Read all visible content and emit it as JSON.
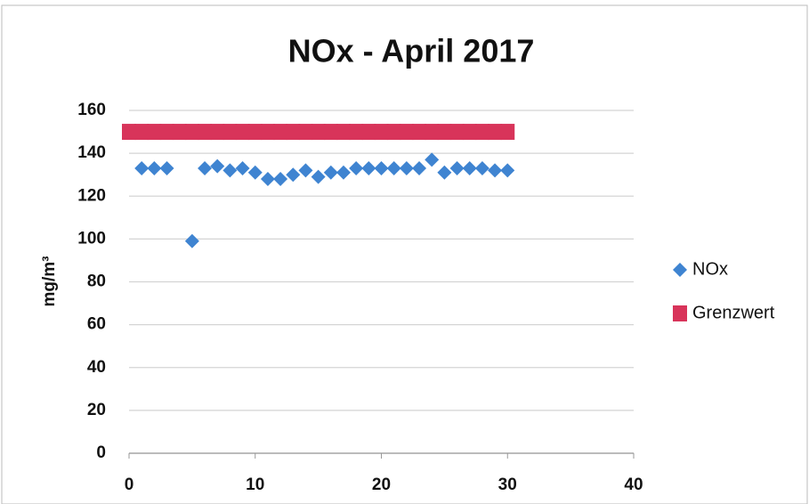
{
  "chart_data": {
    "type": "scatter",
    "title": "NOx -  April 2017",
    "y_label": "mg/m³",
    "xlim": [
      0,
      40
    ],
    "xticks": [
      0,
      10,
      20,
      30,
      40
    ],
    "ylim": [
      0,
      160
    ],
    "yticks": [
      0,
      20,
      40,
      60,
      80,
      100,
      120,
      140,
      160
    ],
    "grid": true,
    "legend": "right",
    "series": [
      {
        "name": "NOx",
        "color": "#3f84d1",
        "marker": "diamond",
        "x": [
          1,
          2,
          3,
          5,
          6,
          7,
          8,
          9,
          10,
          11,
          12,
          13,
          14,
          15,
          16,
          17,
          18,
          19,
          20,
          21,
          22,
          23,
          24,
          25,
          26,
          27,
          28,
          29,
          30
        ],
        "values": [
          133,
          133,
          133,
          99,
          133,
          134,
          132,
          133,
          131,
          128,
          128,
          130,
          132,
          129,
          131,
          131,
          133,
          133,
          133,
          133,
          133,
          133,
          137,
          131,
          133,
          133,
          133,
          132,
          132
        ]
      },
      {
        "name": "Grenzwert",
        "color": "#d8345a",
        "marker": "square",
        "x": [
          0,
          1,
          2,
          3,
          4,
          5,
          6,
          7,
          8,
          9,
          10,
          11,
          12,
          13,
          14,
          15,
          16,
          17,
          18,
          19,
          20,
          21,
          22,
          23,
          24,
          25,
          26,
          27,
          28,
          29,
          30
        ],
        "values": [
          150,
          150,
          150,
          150,
          150,
          150,
          150,
          150,
          150,
          150,
          150,
          150,
          150,
          150,
          150,
          150,
          150,
          150,
          150,
          150,
          150,
          150,
          150,
          150,
          150,
          150,
          150,
          150,
          150,
          150,
          150
        ]
      }
    ]
  }
}
